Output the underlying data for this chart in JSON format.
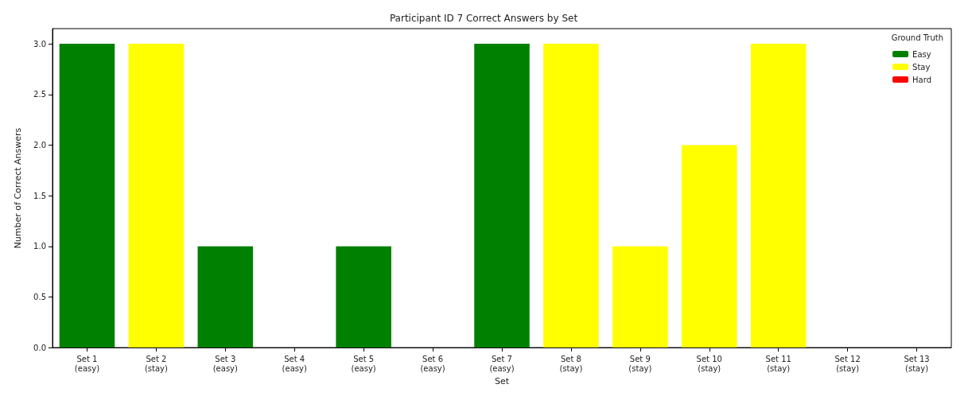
{
  "chart_data": {
    "type": "bar",
    "title": "Participant ID 7 Correct Answers by Set",
    "xlabel": "Set",
    "ylabel": "Number of Correct Answers",
    "legend_title": "Ground Truth",
    "legend": "top right",
    "stacked": true,
    "grid": false,
    "categories": [
      "Set 1\n(easy)",
      "Set 2\n(stay)",
      "Set 3\n(easy)",
      "Set 4\n(easy)",
      "Set 5\n(easy)",
      "Set 6\n(easy)",
      "Set 7\n(easy)",
      "Set 8\n(stay)",
      "Set 9\n(stay)",
      "Set 10\n(stay)",
      "Set 11\n(stay)",
      "Set 12\n(stay)",
      "Set 13\n(stay)"
    ],
    "series": [
      {
        "name": "Easy",
        "color": "#008000",
        "values": [
          3,
          null,
          1,
          0,
          1,
          0,
          3,
          null,
          null,
          null,
          null,
          null,
          null
        ]
      },
      {
        "name": "Stay",
        "color": "#ffff00",
        "values": [
          null,
          3,
          null,
          null,
          null,
          null,
          null,
          3,
          1,
          2,
          3,
          0,
          0
        ]
      },
      {
        "name": "Hard",
        "color": "#ff0000",
        "values": [
          null,
          null,
          null,
          null,
          null,
          null,
          null,
          null,
          null,
          null,
          null,
          null,
          null
        ]
      }
    ],
    "ylim": [
      0,
      3.15
    ],
    "yticks": [
      {
        "value": 0,
        "label": "0.0"
      },
      {
        "value": 0.5,
        "label": "0.5"
      },
      {
        "value": 1,
        "label": "1.0"
      },
      {
        "value": 1.5,
        "label": "1.5"
      },
      {
        "value": 2,
        "label": "2.0"
      },
      {
        "value": 2.5,
        "label": "2.5"
      },
      {
        "value": 3,
        "label": "3.0"
      }
    ]
  }
}
